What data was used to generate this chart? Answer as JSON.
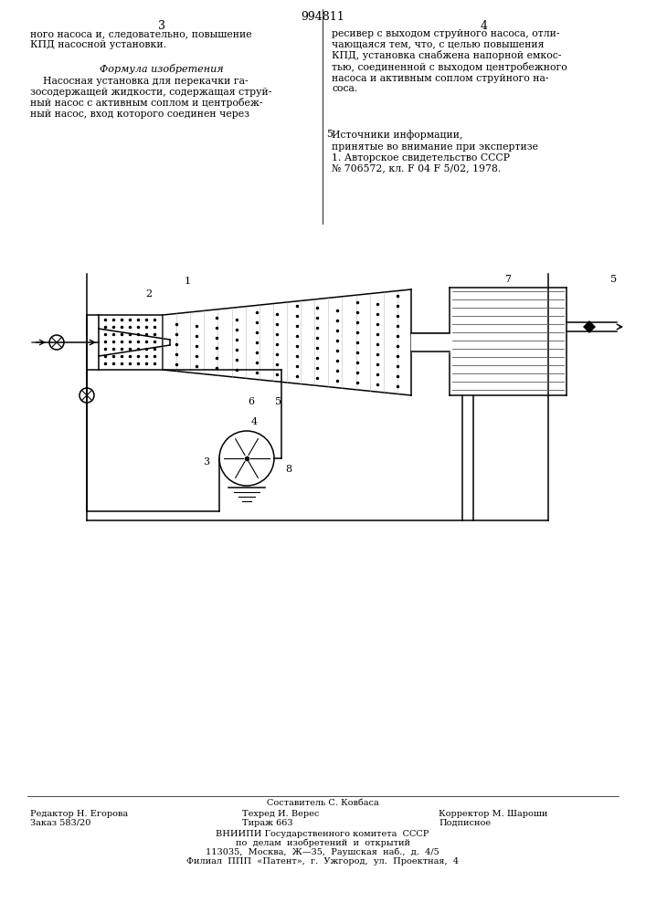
{
  "patent_number": "994811",
  "pg_left": "3",
  "pg_right": "4",
  "col1_top": "ного насоса и, следовательно, повышение\nКПД насосной установки.",
  "formula_title": "Формула изобретения",
  "formula_body": "    Насосная установка для перекачки га-\nзосодержащей жидкости, содержащая струй-\nный насос с активным соплом и центробеж-\nный насос, вход которого соединен через",
  "col2_top": "ресивер с выходом струйного насоса, отли-\nчающаяся тем, что, с целью повышения\nКПД, установка снабжена напорной емкос-\nтью, соединенной с выходом центробежного\nнасоса и активным соплом струйного на-\nсоса.",
  "num5": "5",
  "src_title": "Источники информации,",
  "src_body": "принятые во внимание при экспертизе\n1. Авторское свидетельство СССР\n№ 706572, кл. F 04 F 5/02, 1978.",
  "f_composer": "Составитель С. Ковбаса",
  "f_editor_l1": "Редактор Н. Егорова",
  "f_editor_l2": "Заказ 583/20",
  "f_tech_l1": "Техред И. Верес",
  "f_tech_l2": "Тираж 663",
  "f_corr_l1": "Корректор М. Шароши",
  "f_corr_l2": "Подписное",
  "f_vniipи": "ВНИИПИ Государственного комитета  СССР",
  "f_l2": "по  делам  изобретений  и  открытий",
  "f_l3": "113035,  Москва,  Ж—35,  Раушская  наб.,  д.  4/5",
  "f_l4": "Филиал  ППП  «Патент»,  г.  Ужгород,  ул.  Проектная,  4",
  "bg": "#ffffff",
  "fg": "#000000"
}
